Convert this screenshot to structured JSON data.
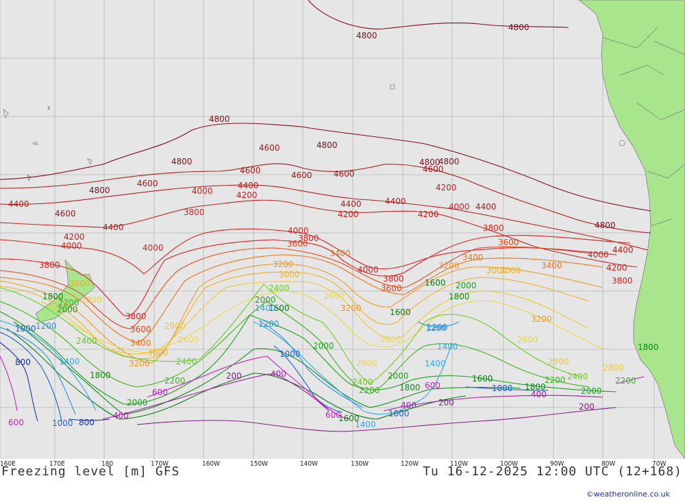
{
  "title": "Freezing level [m] GFS",
  "valid_time": "Tu 16-12-2025 12:00 UTC (12+168)",
  "credit": "©weatheronline.co.uk",
  "lon_labels": [
    "160E",
    "170E",
    "180",
    "170W",
    "160W",
    "150W",
    "140W",
    "130W",
    "120W",
    "110W",
    "100W",
    "90W",
    "80W",
    "70W"
  ],
  "colors": {
    "ocean": "#e6e6e6",
    "land": "#a8e58c",
    "grid": "#b4b4b4"
  },
  "contours": [
    {
      "level": 4800,
      "color": "#7a1020",
      "labels": [
        "4800",
        "4800",
        "4800",
        "4800",
        "4800",
        "4800",
        "4800",
        "4800",
        "4800"
      ]
    },
    {
      "level": 4600,
      "color": "#a01818",
      "labels": [
        "4600",
        "4600",
        "4600",
        "4600",
        "4600",
        "4600",
        "4600"
      ]
    },
    {
      "level": 4400,
      "color": "#b01c1c",
      "labels": [
        "4400",
        "4400",
        "4400",
        "4400",
        "4400",
        "4400",
        "4400"
      ]
    },
    {
      "level": 4200,
      "color": "#c02020",
      "labels": [
        "4200",
        "4200",
        "4200",
        "4200",
        "4200",
        "4200"
      ]
    },
    {
      "level": 4000,
      "color": "#cc2222",
      "labels": [
        "4000",
        "4000",
        "4000",
        "4000",
        "4000",
        "4000",
        "4000"
      ]
    },
    {
      "level": 3800,
      "color": "#d82020",
      "labels": [
        "3800",
        "3800",
        "3800",
        "3800",
        "3800",
        "3800",
        "3800"
      ]
    },
    {
      "level": 3600,
      "color": "#e0461a",
      "labels": [
        "3600",
        "3600",
        "3600",
        "3600"
      ]
    },
    {
      "level": 3400,
      "color": "#e8741a",
      "labels": [
        "3400",
        "3400",
        "3400",
        "3400"
      ]
    },
    {
      "level": 3200,
      "color": "#f0961a",
      "labels": [
        "3200",
        "3200",
        "3200",
        "3200",
        "3200"
      ]
    },
    {
      "level": 3000,
      "color": "#f0b020",
      "labels": [
        "3000",
        "3000",
        "3000",
        "3000",
        "3000"
      ]
    },
    {
      "level": 2800,
      "color": "#f0c830",
      "labels": [
        "2800",
        "2800",
        "2800",
        "2800"
      ]
    },
    {
      "level": 2600,
      "color": "#e8d840",
      "labels": [
        "2600",
        "2600",
        "2600",
        "2600",
        "2600"
      ]
    },
    {
      "level": 2400,
      "color": "#6acc20",
      "labels": [
        "2400",
        "2400",
        "2400",
        "2400",
        "2400"
      ]
    },
    {
      "level": 2200,
      "color": "#3cb41e",
      "labels": [
        "2200",
        "2200",
        "2200",
        "2200",
        "2200"
      ]
    },
    {
      "level": 2000,
      "color": "#1e9e1e",
      "labels": [
        "2000",
        "2000",
        "2000",
        "2000",
        "2000",
        "2000",
        "2000"
      ]
    },
    {
      "level": 1800,
      "color": "#0a8a14",
      "labels": [
        "1800",
        "1800",
        "1800",
        "1800",
        "1800",
        "1800"
      ]
    },
    {
      "level": 1600,
      "color": "#0a7a10",
      "labels": [
        "1600",
        "1600",
        "1600",
        "1600",
        "1600"
      ]
    },
    {
      "level": 1400,
      "color": "#30a8e8",
      "labels": [
        "1400",
        "1400",
        "1400",
        "1400",
        "1400"
      ]
    },
    {
      "level": 1200,
      "color": "#2890e0",
      "labels": [
        "1200",
        "1200",
        "1200",
        "1200"
      ]
    },
    {
      "level": 1000,
      "color": "#2060d0",
      "labels": [
        "1000",
        "1000",
        "1000",
        "1000",
        "1000"
      ]
    },
    {
      "level": 800,
      "color": "#1830b0",
      "labels": [
        "800",
        "800"
      ]
    },
    {
      "level": 600,
      "color": "#c020c0",
      "labels": [
        "600",
        "600",
        "600",
        "600"
      ]
    },
    {
      "level": 400,
      "color": "#a020a0",
      "labels": [
        "400",
        "400",
        "400",
        "400"
      ]
    },
    {
      "level": 200,
      "color": "#802080",
      "labels": [
        "200",
        "200",
        "200"
      ]
    }
  ]
}
